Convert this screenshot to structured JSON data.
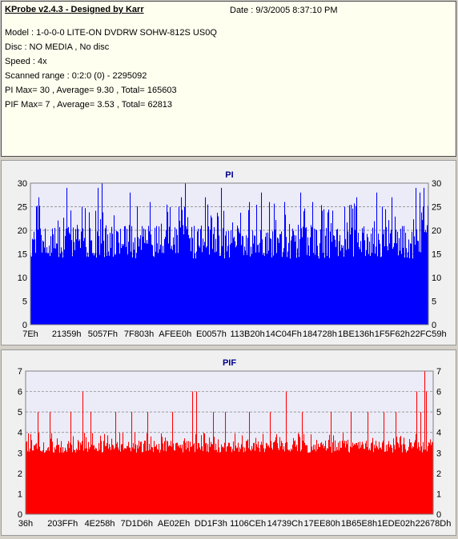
{
  "header": {
    "title": "KProbe v2.4.3 - Designed by Karr",
    "date": "Date : 9/3/2005 8:37:10 PM",
    "lines": [
      "Model : 1-0-0-0 LITE-ON DVDRW SOHW-812S  US0Q",
      "Disc : NO MEDIA , No disc",
      "Speed : 4x",
      "Scanned range : 0:2:0 (0) - 2295092",
      "PI Max= 30 , Average= 9.30 , Total= 165603",
      "PIF Max= 7 , Average= 3.53 , Total= 62813"
    ]
  },
  "colors": {
    "pi": "#0000ff",
    "pif": "#ff0000",
    "plot_bg": "#ececf8",
    "grid": "#7f7f7f",
    "title": "#00008b"
  },
  "chart_data": [
    {
      "type": "bar",
      "title": "PI",
      "ylim": [
        0,
        30
      ],
      "yticks": [
        0,
        5,
        10,
        15,
        20,
        25,
        30
      ],
      "xtick_labels": [
        "7Eh",
        "21359h",
        "5057Fh",
        "7F803h",
        "AFEE0h",
        "E0057h",
        "113B20h",
        "14C04Fh",
        "184728h",
        "1BE136h",
        "1F5F62h",
        "22FC59h"
      ],
      "grid": "dashed horizontal",
      "baseline": 14,
      "max": 30,
      "average": 9.3,
      "peaks": [
        {
          "pos": 0.02,
          "value": 27
        },
        {
          "pos": 0.09,
          "value": 29
        },
        {
          "pos": 0.13,
          "value": 25
        },
        {
          "pos": 0.17,
          "value": 29
        },
        {
          "pos": 0.18,
          "value": 30
        },
        {
          "pos": 0.25,
          "value": 28
        },
        {
          "pos": 0.3,
          "value": 26
        },
        {
          "pos": 0.38,
          "value": 27
        },
        {
          "pos": 0.39,
          "value": 30
        },
        {
          "pos": 0.44,
          "value": 27
        },
        {
          "pos": 0.48,
          "value": 29
        },
        {
          "pos": 0.55,
          "value": 26
        },
        {
          "pos": 0.58,
          "value": 28
        },
        {
          "pos": 0.6,
          "value": 26
        },
        {
          "pos": 0.64,
          "value": 26
        },
        {
          "pos": 0.68,
          "value": 28
        },
        {
          "pos": 0.71,
          "value": 26
        },
        {
          "pos": 0.79,
          "value": 25
        },
        {
          "pos": 0.82,
          "value": 27
        },
        {
          "pos": 0.87,
          "value": 28
        },
        {
          "pos": 0.91,
          "value": 27
        },
        {
          "pos": 0.97,
          "value": 29
        },
        {
          "pos": 0.98,
          "value": 28
        },
        {
          "pos": 0.99,
          "value": 29
        }
      ]
    },
    {
      "type": "bar",
      "title": "PIF",
      "ylim": [
        0,
        7
      ],
      "yticks": [
        0,
        1,
        2,
        3,
        4,
        5,
        6,
        7
      ],
      "xtick_labels": [
        "36h",
        "203FFh",
        "4E258h",
        "7D1D6h",
        "AE02Eh",
        "DD1F3h",
        "1106CEh",
        "14739Ch",
        "17EE80h",
        "1B65E8h",
        "1EDE02h",
        "22678Dh"
      ],
      "grid": "dashed horizontal",
      "baseline": 3,
      "max": 7,
      "average": 3.53,
      "peaks": [
        {
          "pos": 0.03,
          "value": 5
        },
        {
          "pos": 0.06,
          "value": 5
        },
        {
          "pos": 0.11,
          "value": 5
        },
        {
          "pos": 0.14,
          "value": 6
        },
        {
          "pos": 0.16,
          "value": 5
        },
        {
          "pos": 0.22,
          "value": 5
        },
        {
          "pos": 0.26,
          "value": 5
        },
        {
          "pos": 0.3,
          "value": 5
        },
        {
          "pos": 0.36,
          "value": 5
        },
        {
          "pos": 0.41,
          "value": 6
        },
        {
          "pos": 0.42,
          "value": 6
        },
        {
          "pos": 0.46,
          "value": 5
        },
        {
          "pos": 0.49,
          "value": 5
        },
        {
          "pos": 0.55,
          "value": 5
        },
        {
          "pos": 0.6,
          "value": 5
        },
        {
          "pos": 0.64,
          "value": 6
        },
        {
          "pos": 0.68,
          "value": 5
        },
        {
          "pos": 0.75,
          "value": 5
        },
        {
          "pos": 0.8,
          "value": 5
        },
        {
          "pos": 0.84,
          "value": 5
        },
        {
          "pos": 0.88,
          "value": 5
        },
        {
          "pos": 0.91,
          "value": 5
        },
        {
          "pos": 0.96,
          "value": 6
        },
        {
          "pos": 0.97,
          "value": 5
        },
        {
          "pos": 0.98,
          "value": 7
        },
        {
          "pos": 0.985,
          "value": 6
        }
      ]
    }
  ]
}
